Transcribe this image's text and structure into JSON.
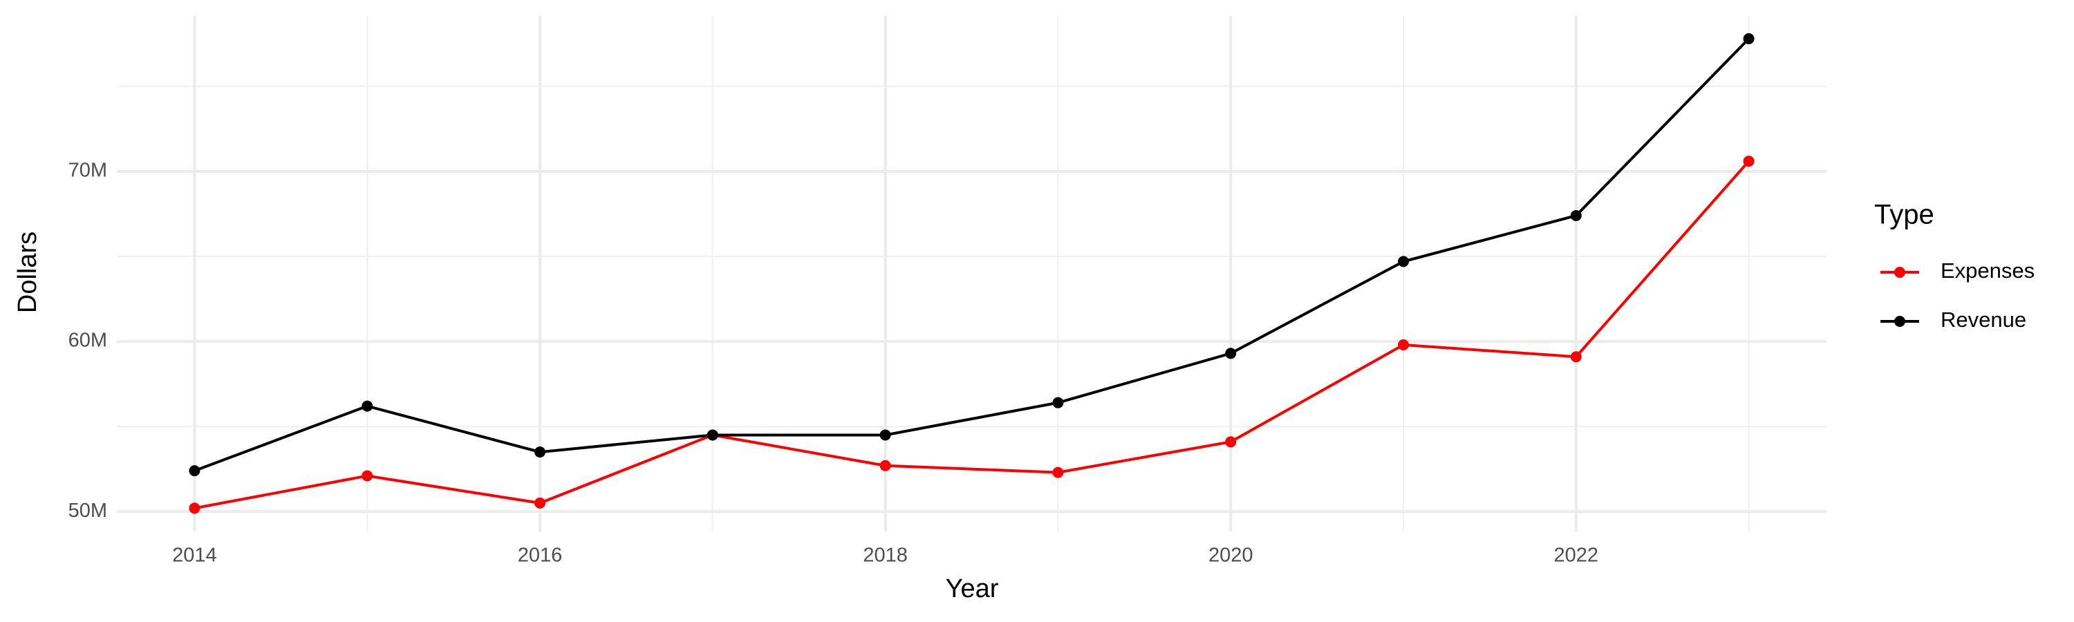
{
  "chart_data": {
    "type": "line",
    "x_label": "Year",
    "y_label": "Dollars",
    "legend_title": "Type",
    "x": [
      2014,
      2015,
      2016,
      2017,
      2018,
      2019,
      2020,
      2021,
      2022,
      2023
    ],
    "series": [
      {
        "name": "Expenses",
        "color": "#ff0000",
        "values": [
          50200000,
          52100000,
          50500000,
          54500000,
          52700000,
          52300000,
          54100000,
          59800000,
          59100000,
          70600000
        ]
      },
      {
        "name": "Revenue",
        "color": "#000000",
        "values": [
          52400000,
          56200000,
          53500000,
          54500000,
          54500000,
          56400000,
          59300000,
          64700000,
          67400000,
          77800000
        ]
      }
    ],
    "xlim": [
      2013.55,
      2023.45
    ],
    "xticks": [
      2014,
      2016,
      2018,
      2020,
      2022
    ],
    "ylim": [
      48830000,
      79140000
    ],
    "yticks": [
      {
        "value": 50000000,
        "label": "50M"
      },
      {
        "value": 60000000,
        "label": "60M"
      },
      {
        "value": 70000000,
        "label": "70M"
      }
    ],
    "grid": true,
    "minor_grid": true,
    "legend_position": "right"
  }
}
